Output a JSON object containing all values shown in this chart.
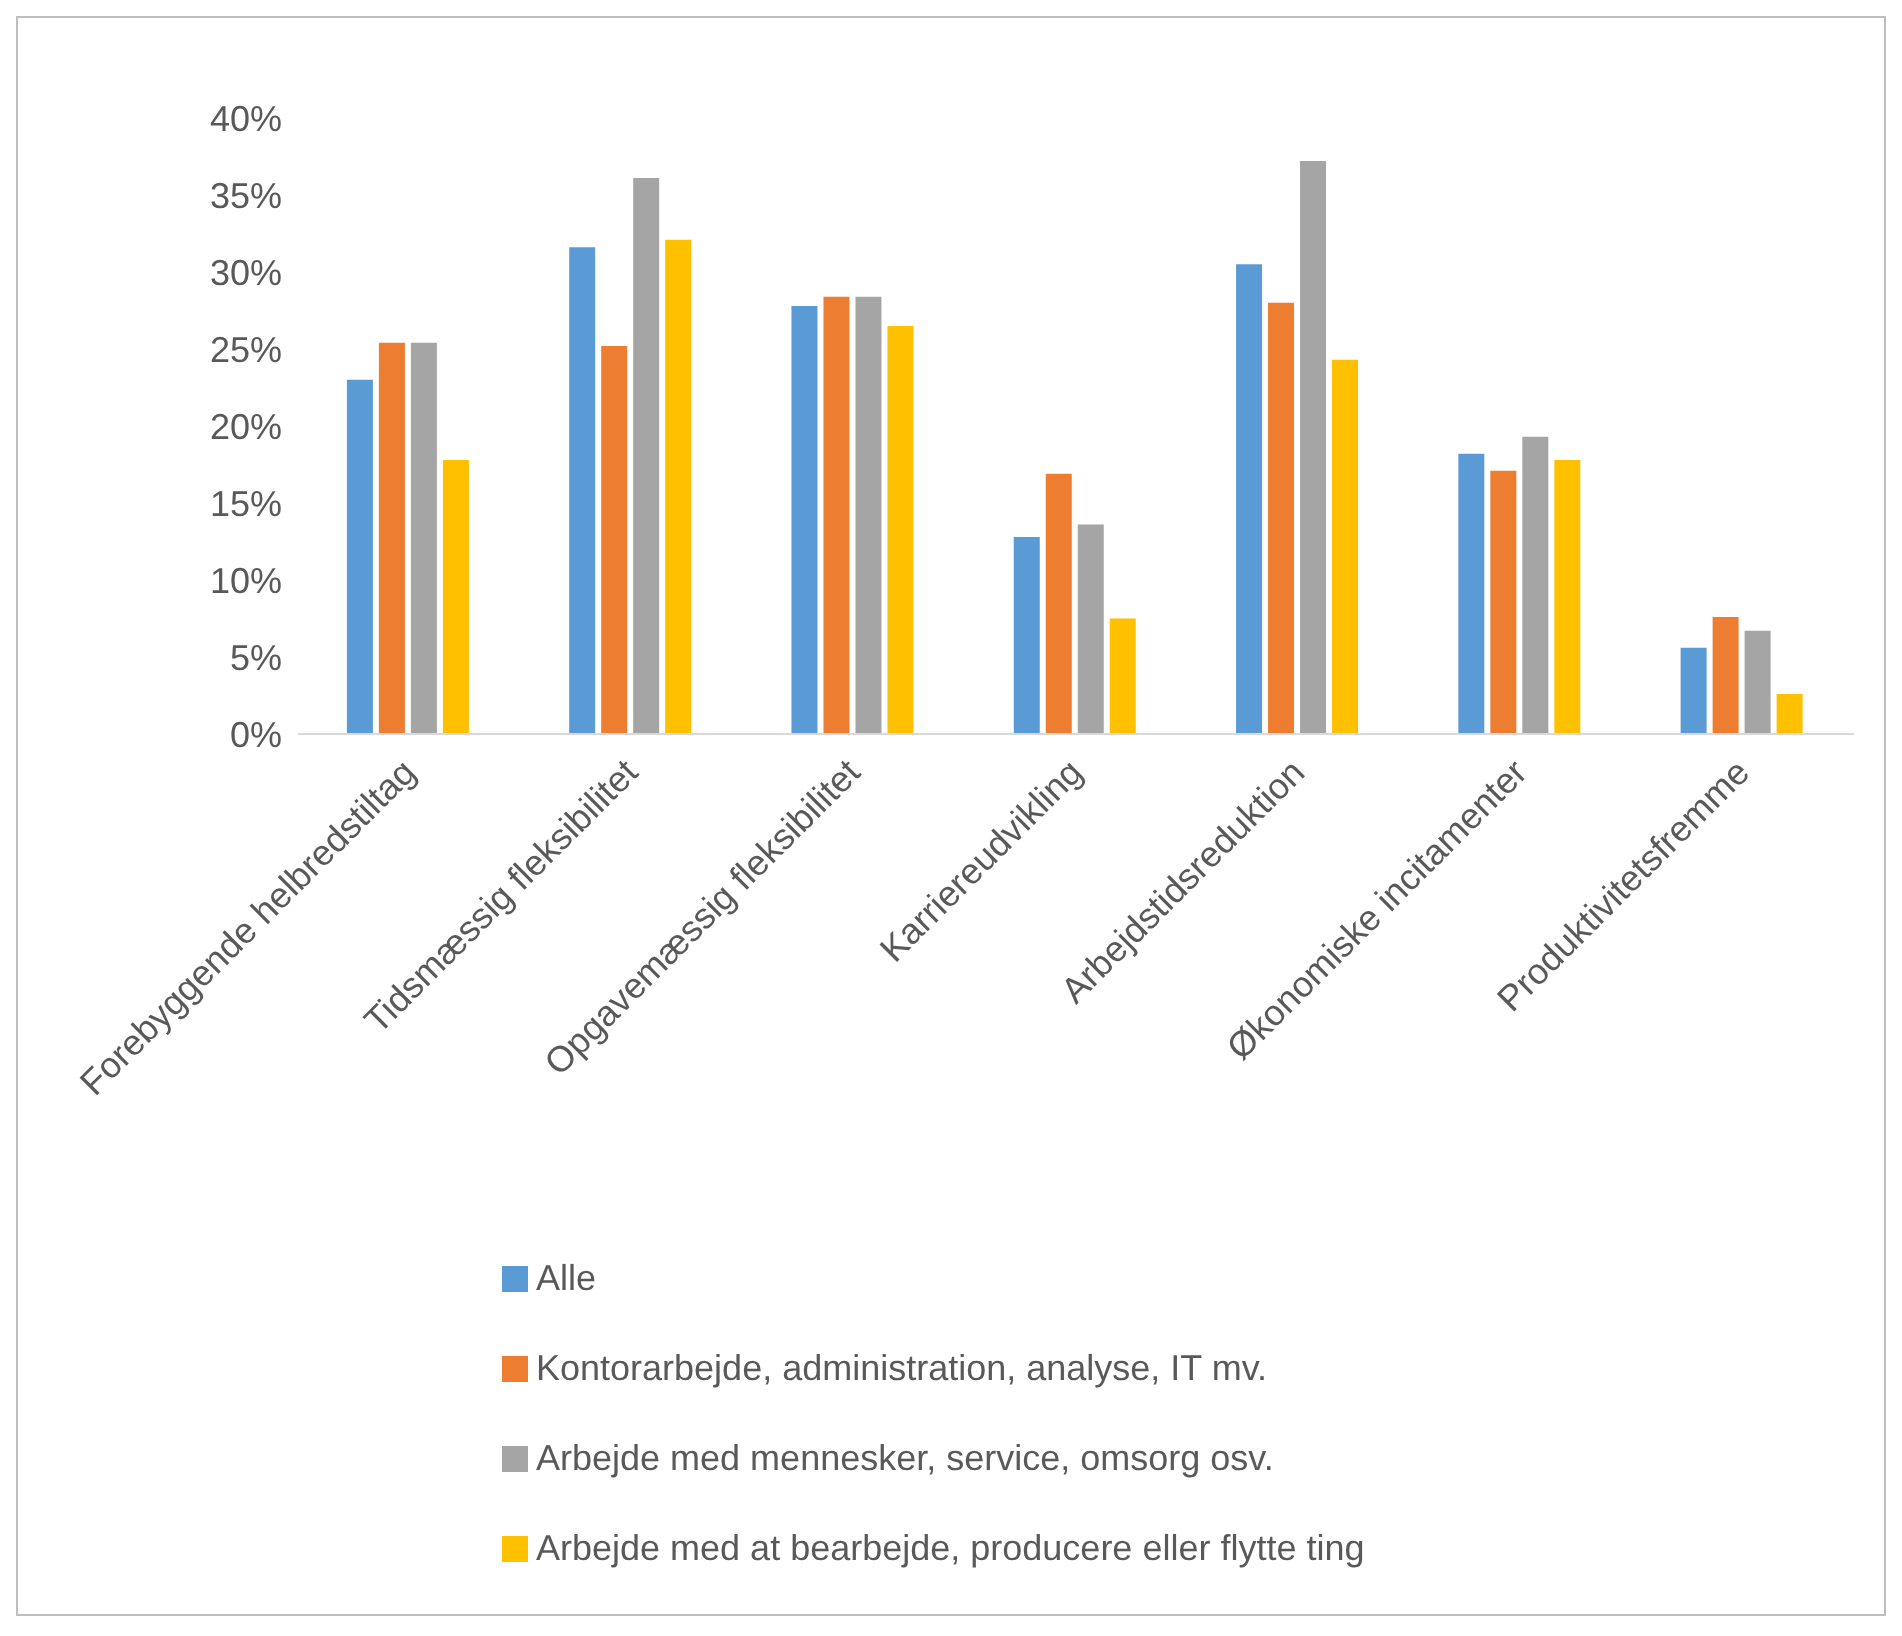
{
  "chart_data": {
    "type": "bar",
    "categories": [
      "Forebyggende helbredstiltag",
      "Tidsmæssig fleksibilitet",
      "Opgavemæssig fleksibilitet",
      "Karriereudvikling",
      "Arbejdstidsreduktion",
      "Økonomiske incitamenter",
      "Produktivitetsfremme"
    ],
    "series": [
      {
        "name": "Alle",
        "color": "#5b9bd5",
        "values": [
          23,
          31.6,
          27.8,
          12.8,
          30.5,
          18.2,
          5.6
        ]
      },
      {
        "name": "Kontorarbejde, administration, analyse, IT mv.",
        "color": "#ed7d31",
        "values": [
          25.4,
          25.2,
          28.4,
          16.9,
          28,
          17.1,
          7.6
        ]
      },
      {
        "name": "Arbejde med mennesker, service, omsorg osv.",
        "color": "#a5a5a5",
        "values": [
          25.4,
          36.1,
          28.4,
          13.6,
          37.2,
          19.3,
          6.7
        ]
      },
      {
        "name": "Arbejde med at bearbejde, producere eller flytte ting",
        "color": "#ffc000",
        "values": [
          17.8,
          32.1,
          26.5,
          7.5,
          24.3,
          17.8,
          2.6
        ]
      }
    ],
    "ylim": [
      0,
      40
    ],
    "yticks": [
      {
        "value": 0,
        "label": "0%"
      },
      {
        "value": 5,
        "label": "5%"
      },
      {
        "value": 10,
        "label": "10%"
      },
      {
        "value": 15,
        "label": "15%"
      },
      {
        "value": 20,
        "label": "20%"
      },
      {
        "value": 25,
        "label": "25%"
      },
      {
        "value": 30,
        "label": "30%"
      },
      {
        "value": 35,
        "label": "35%"
      },
      {
        "value": 40,
        "label": "40%"
      }
    ],
    "grid": false,
    "legend": "bottom"
  }
}
